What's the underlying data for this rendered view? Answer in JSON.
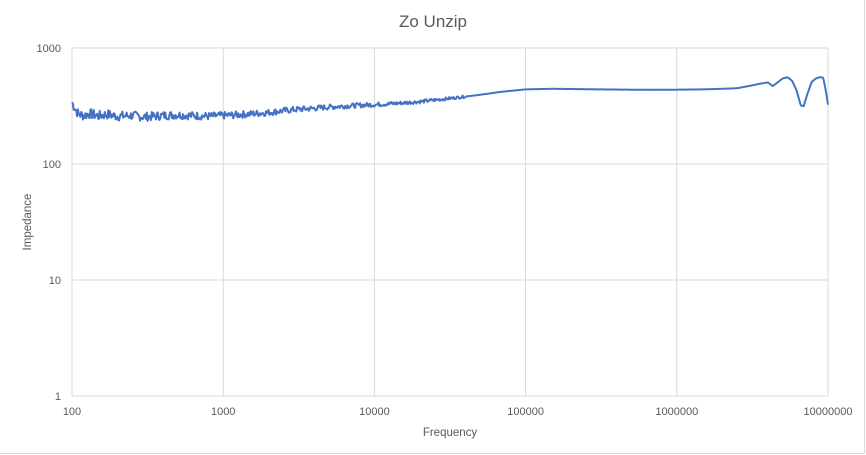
{
  "chart_data": {
    "type": "line",
    "title": "Zo Unzip",
    "xlabel": "Frequency",
    "ylabel": "Impedance",
    "x_scale": "log",
    "y_scale": "log",
    "xlim": [
      100,
      10000000
    ],
    "ylim": [
      1,
      1000
    ],
    "x_ticks": [
      "100",
      "1000",
      "10000",
      "100000",
      "1000000",
      "10000000"
    ],
    "y_ticks": [
      "1",
      "10",
      "100",
      "1000"
    ],
    "grid": true,
    "legend": "none",
    "series": [
      {
        "color": "#4472c4",
        "points": [
          [
            100,
            340
          ],
          [
            105,
            300
          ],
          [
            110,
            270
          ],
          [
            120,
            262
          ],
          [
            130,
            272
          ],
          [
            150,
            260
          ],
          [
            170,
            268
          ],
          [
            200,
            258
          ],
          [
            250,
            262
          ],
          [
            300,
            255
          ],
          [
            350,
            258
          ],
          [
            400,
            262
          ],
          [
            500,
            265
          ],
          [
            600,
            262
          ],
          [
            700,
            260
          ],
          [
            800,
            258
          ],
          [
            1000,
            262
          ],
          [
            1200,
            265
          ],
          [
            1500,
            270
          ],
          [
            2000,
            278
          ],
          [
            2500,
            288
          ],
          [
            3000,
            295
          ],
          [
            4000,
            302
          ],
          [
            5000,
            310
          ],
          [
            7000,
            318
          ],
          [
            10000,
            325
          ],
          [
            15000,
            335
          ],
          [
            20000,
            345
          ],
          [
            30000,
            365
          ],
          [
            50000,
            395
          ],
          [
            70000,
            420
          ],
          [
            100000,
            440
          ],
          [
            150000,
            445
          ],
          [
            200000,
            443
          ],
          [
            300000,
            440
          ],
          [
            500000,
            437
          ],
          [
            700000,
            436
          ],
          [
            1000000,
            437
          ],
          [
            1500000,
            440
          ],
          [
            2000000,
            445
          ],
          [
            2500000,
            450
          ],
          [
            3000000,
            470
          ],
          [
            3500000,
            490
          ],
          [
            4000000,
            505
          ],
          [
            4300000,
            470
          ],
          [
            4600000,
            500
          ],
          [
            5000000,
            545
          ],
          [
            5400000,
            560
          ],
          [
            5800000,
            520
          ],
          [
            6200000,
            430
          ],
          [
            6600000,
            320
          ],
          [
            6900000,
            315
          ],
          [
            7300000,
            400
          ],
          [
            7800000,
            510
          ],
          [
            8300000,
            545
          ],
          [
            8800000,
            560
          ],
          [
            9300000,
            555
          ],
          [
            9700000,
            420
          ],
          [
            10000000,
            325
          ]
        ],
        "noise_range": [
          100,
          40000
        ]
      }
    ]
  }
}
